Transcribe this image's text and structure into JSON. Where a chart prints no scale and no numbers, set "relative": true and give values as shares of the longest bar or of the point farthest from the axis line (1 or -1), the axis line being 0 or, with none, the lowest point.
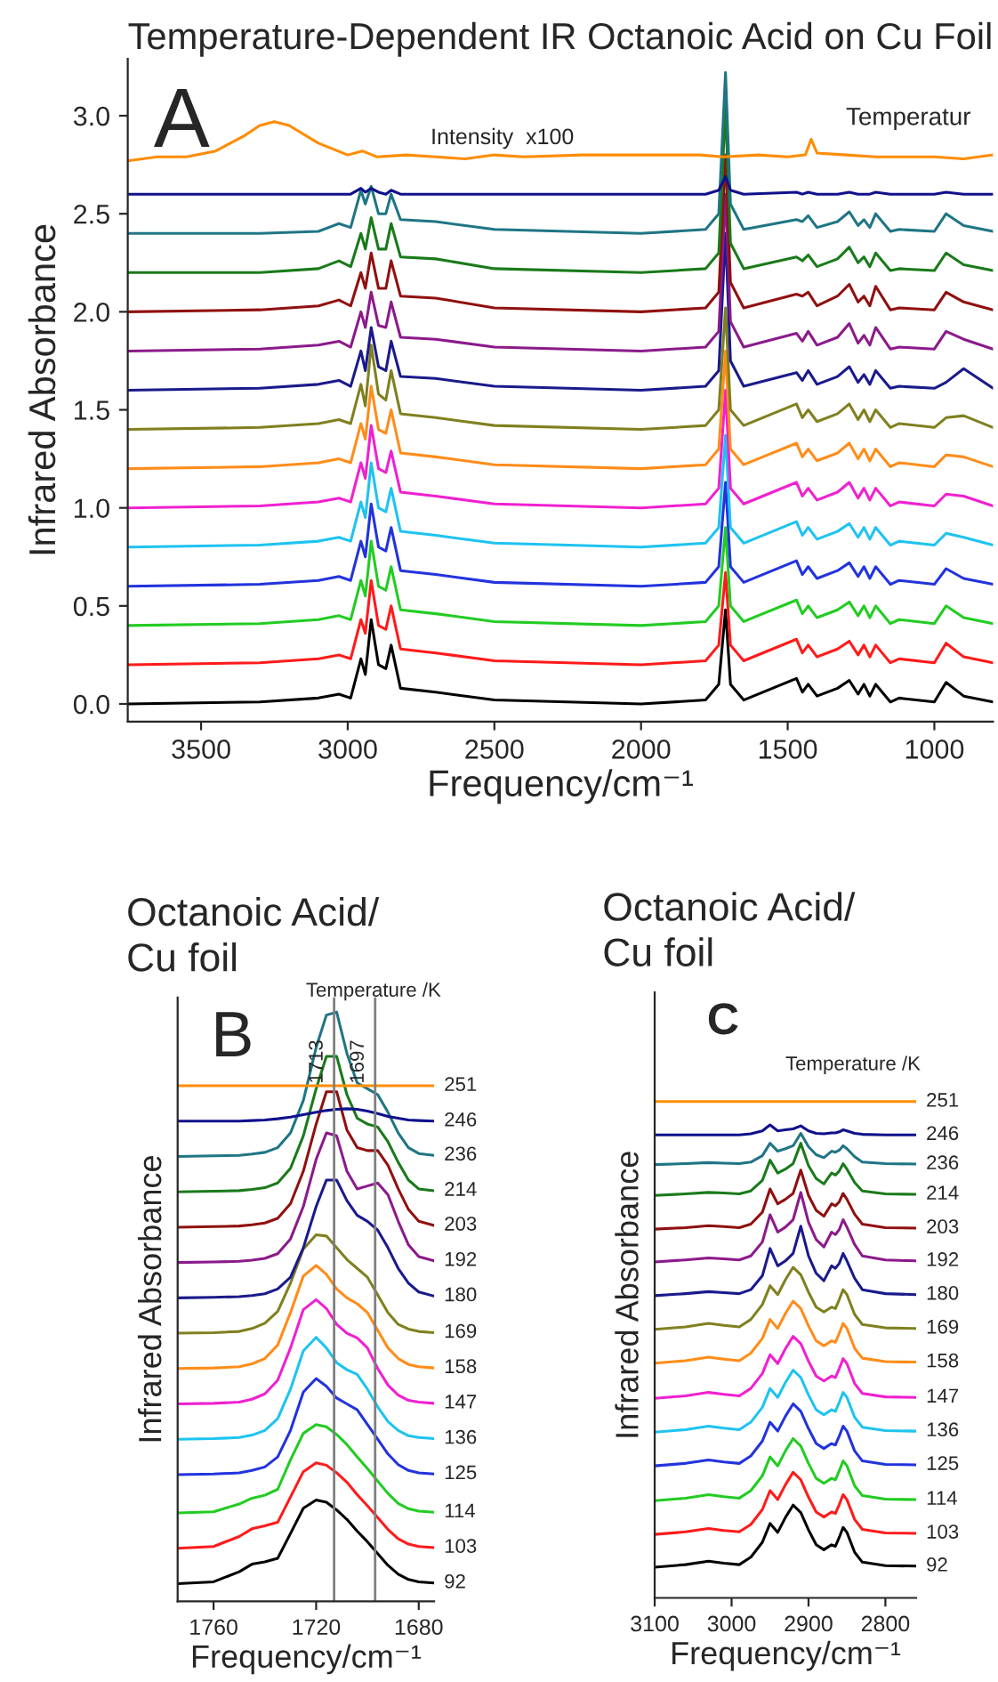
{
  "chart_data": [
    {
      "type": "line",
      "title": "Temperature-Dependent IR Octanoic Acid on Cu Foil",
      "xlabel": "Frequency/cm⁻¹",
      "ylabel": "Infrared Absorbance",
      "xlim": [
        3750,
        800
      ],
      "xticks": [
        3500,
        3000,
        2500,
        2000,
        1500,
        1000
      ],
      "ylim": [
        -0.09,
        3.29
      ],
      "yticks": [
        {
          "value": 0,
          "label": "0.0"
        },
        0.5,
        {
          "value": 1,
          "label": "1.0"
        },
        1.5,
        {
          "value": 2,
          "label": "2.0"
        },
        2.5,
        {
          "value": 3,
          "label": "3.0"
        }
      ],
      "annotations": [
        "A",
        "Temperatur",
        "Intensity  x100"
      ],
      "x": [
        3750,
        3300,
        3100,
        3030,
        2990,
        2955,
        2940,
        2920,
        2895,
        2870,
        2852,
        2820,
        2700,
        2500,
        2000,
        1780,
        1735,
        1712,
        1695,
        1650,
        1470,
        1450,
        1430,
        1400,
        1330,
        1290,
        1260,
        1240,
        1220,
        1200,
        1150,
        1120,
        1000,
        960,
        900,
        800
      ],
      "series": [
        {
          "color": "#000000",
          "values": [
            0,
            0.01,
            0.03,
            0.05,
            0.03,
            0.23,
            0.15,
            0.43,
            0.2,
            0.18,
            0.3,
            0.08,
            0.06,
            0.02,
            0,
            0.02,
            0.1,
            0.48,
            0.1,
            0.02,
            0.13,
            0.06,
            0.1,
            0.04,
            0.08,
            0.12,
            0.05,
            0.1,
            0.04,
            0.1,
            0.01,
            0.03,
            0.01,
            0.11,
            0.04,
            0.01
          ]
        },
        {
          "color": "#ff1a1a",
          "values": [
            0.2,
            0.21,
            0.23,
            0.25,
            0.23,
            0.43,
            0.36,
            0.63,
            0.4,
            0.38,
            0.5,
            0.28,
            0.26,
            0.22,
            0.2,
            0.22,
            0.3,
            0.67,
            0.3,
            0.22,
            0.33,
            0.26,
            0.3,
            0.24,
            0.28,
            0.32,
            0.25,
            0.3,
            0.24,
            0.3,
            0.21,
            0.23,
            0.21,
            0.31,
            0.24,
            0.21
          ]
        },
        {
          "color": "#22cc22",
          "values": [
            0.4,
            0.41,
            0.43,
            0.45,
            0.43,
            0.63,
            0.55,
            0.83,
            0.6,
            0.58,
            0.7,
            0.48,
            0.46,
            0.42,
            0.4,
            0.42,
            0.5,
            0.9,
            0.5,
            0.42,
            0.53,
            0.46,
            0.5,
            0.44,
            0.48,
            0.52,
            0.45,
            0.5,
            0.44,
            0.5,
            0.41,
            0.43,
            0.41,
            0.5,
            0.44,
            0.41
          ]
        },
        {
          "color": "#2233dd",
          "values": [
            0.6,
            0.61,
            0.63,
            0.65,
            0.63,
            0.83,
            0.75,
            1.02,
            0.8,
            0.78,
            0.9,
            0.68,
            0.66,
            0.62,
            0.6,
            0.62,
            0.7,
            1.13,
            0.7,
            0.62,
            0.73,
            0.66,
            0.7,
            0.64,
            0.68,
            0.72,
            0.65,
            0.7,
            0.64,
            0.7,
            0.61,
            0.63,
            0.61,
            0.69,
            0.64,
            0.61
          ]
        },
        {
          "color": "#1ec3f0",
          "values": [
            0.8,
            0.81,
            0.83,
            0.85,
            0.83,
            1.03,
            0.95,
            1.23,
            1.0,
            0.98,
            1.1,
            0.88,
            0.86,
            0.82,
            0.8,
            0.82,
            0.9,
            1.37,
            0.9,
            0.82,
            0.93,
            0.86,
            0.9,
            0.84,
            0.88,
            0.92,
            0.85,
            0.9,
            0.84,
            0.9,
            0.81,
            0.83,
            0.81,
            0.87,
            0.85,
            0.81
          ]
        },
        {
          "color": "#f020d0",
          "values": [
            1.0,
            1.01,
            1.03,
            1.05,
            1.03,
            1.23,
            1.15,
            1.42,
            1.2,
            1.18,
            1.29,
            1.08,
            1.06,
            1.02,
            1.0,
            1.02,
            1.1,
            1.6,
            1.1,
            1.02,
            1.13,
            1.06,
            1.1,
            1.04,
            1.08,
            1.13,
            1.05,
            1.1,
            1.04,
            1.1,
            1.01,
            1.03,
            1.01,
            1.07,
            1.06,
            1.01
          ]
        },
        {
          "color": "#ff8c1a",
          "values": [
            1.2,
            1.21,
            1.23,
            1.25,
            1.23,
            1.43,
            1.35,
            1.62,
            1.4,
            1.38,
            1.5,
            1.28,
            1.26,
            1.22,
            1.2,
            1.22,
            1.3,
            1.8,
            1.3,
            1.22,
            1.33,
            1.26,
            1.3,
            1.24,
            1.28,
            1.33,
            1.25,
            1.3,
            1.24,
            1.3,
            1.21,
            1.23,
            1.21,
            1.27,
            1.26,
            1.21
          ]
        },
        {
          "color": "#808020",
          "values": [
            1.4,
            1.41,
            1.43,
            1.45,
            1.43,
            1.63,
            1.52,
            1.83,
            1.58,
            1.55,
            1.7,
            1.48,
            1.46,
            1.42,
            1.4,
            1.42,
            1.5,
            2.02,
            1.5,
            1.42,
            1.53,
            1.46,
            1.5,
            1.44,
            1.48,
            1.53,
            1.45,
            1.5,
            1.44,
            1.5,
            1.41,
            1.43,
            1.41,
            1.46,
            1.47,
            1.41
          ]
        },
        {
          "color": "#1a1a8c",
          "values": [
            1.6,
            1.61,
            1.63,
            1.65,
            1.62,
            1.8,
            1.7,
            1.92,
            1.72,
            1.7,
            1.85,
            1.67,
            1.66,
            1.62,
            1.6,
            1.62,
            1.7,
            2.4,
            1.75,
            1.62,
            1.69,
            1.65,
            1.7,
            1.63,
            1.67,
            1.72,
            1.64,
            1.68,
            1.63,
            1.7,
            1.61,
            1.62,
            1.61,
            1.64,
            1.71,
            1.61
          ]
        },
        {
          "color": "#8b1a8b",
          "values": [
            1.8,
            1.81,
            1.83,
            1.85,
            1.82,
            2.0,
            1.92,
            2.1,
            1.93,
            1.92,
            2.05,
            1.87,
            1.86,
            1.82,
            1.8,
            1.82,
            1.9,
            2.6,
            1.95,
            1.82,
            1.89,
            1.85,
            1.9,
            1.83,
            1.87,
            1.94,
            1.84,
            1.88,
            1.83,
            1.92,
            1.81,
            1.82,
            1.81,
            1.9,
            1.86,
            1.81
          ]
        },
        {
          "color": "#901010",
          "values": [
            2.0,
            2.01,
            2.03,
            2.06,
            2.03,
            2.2,
            2.12,
            2.3,
            2.12,
            2.12,
            2.26,
            2.08,
            2.07,
            2.02,
            2.0,
            2.02,
            2.1,
            2.8,
            2.15,
            2.02,
            2.09,
            2.08,
            2.1,
            2.03,
            2.08,
            2.14,
            2.05,
            2.08,
            2.03,
            2.13,
            2.01,
            2.02,
            2.01,
            2.1,
            2.05,
            2.01
          ]
        },
        {
          "color": "#1a7a1a",
          "values": [
            2.2,
            2.2,
            2.22,
            2.26,
            2.23,
            2.4,
            2.32,
            2.48,
            2.32,
            2.32,
            2.45,
            2.28,
            2.27,
            2.22,
            2.2,
            2.22,
            2.3,
            3.05,
            2.35,
            2.22,
            2.28,
            2.26,
            2.29,
            2.23,
            2.27,
            2.33,
            2.25,
            2.28,
            2.23,
            2.3,
            2.21,
            2.22,
            2.21,
            2.3,
            2.24,
            2.21
          ]
        },
        {
          "color": "#1f7585",
          "values": [
            2.4,
            2.4,
            2.41,
            2.45,
            2.43,
            2.62,
            2.55,
            2.64,
            2.5,
            2.5,
            2.6,
            2.47,
            2.46,
            2.42,
            2.4,
            2.42,
            2.5,
            3.22,
            2.55,
            2.42,
            2.47,
            2.46,
            2.49,
            2.43,
            2.46,
            2.51,
            2.44,
            2.47,
            2.43,
            2.5,
            2.41,
            2.42,
            2.41,
            2.5,
            2.44,
            2.41
          ]
        },
        {
          "color": "#10108c",
          "values": [
            2.6,
            2.6,
            2.6,
            2.6,
            2.6,
            2.63,
            2.61,
            2.63,
            2.61,
            2.6,
            2.62,
            2.6,
            2.6,
            2.6,
            2.6,
            2.6,
            2.62,
            2.69,
            2.62,
            2.6,
            2.61,
            2.6,
            2.61,
            2.6,
            2.6,
            2.61,
            2.6,
            2.6,
            2.6,
            2.61,
            2.6,
            2.6,
            2.6,
            2.61,
            2.6,
            2.6
          ]
        },
        {
          "color": "#ff8c00",
          "x": [
            3750,
            3650,
            3550,
            3450,
            3350,
            3300,
            3250,
            3200,
            3100,
            3000,
            2950,
            2900,
            2800,
            2700,
            2600,
            2500,
            2400,
            2200,
            2000,
            1800,
            1720,
            1600,
            1500,
            1440,
            1420,
            1400,
            1300,
            1200,
            1100,
            1000,
            900,
            800
          ],
          "values": [
            2.77,
            2.79,
            2.79,
            2.82,
            2.9,
            2.95,
            2.97,
            2.95,
            2.86,
            2.8,
            2.82,
            2.79,
            2.8,
            2.79,
            2.78,
            2.8,
            2.79,
            2.8,
            2.8,
            2.8,
            2.79,
            2.8,
            2.79,
            2.8,
            2.88,
            2.81,
            2.8,
            2.79,
            2.79,
            2.79,
            2.78,
            2.8
          ]
        }
      ]
    },
    {
      "type": "line",
      "relative": true,
      "title": "Octanoic Acid/\nCu foil",
      "xlabel": "Frequency/cm⁻¹",
      "ylabel": "Infrared Absorbance",
      "tick_labels": "x",
      "xlim": [
        1774,
        1674
      ],
      "xticks": [
        1760,
        1720,
        1680
      ],
      "annotations": [
        "B",
        "Temperature /K"
      ],
      "ref_lines": [
        {
          "axis": "x",
          "value": 1713,
          "label": "1713",
          "color": "#808080"
        },
        {
          "axis": "x",
          "value": 1697,
          "label": "1697",
          "color": "#808080"
        }
      ],
      "x": [
        1774,
        1760,
        1750,
        1745,
        1740,
        1735,
        1730,
        1725,
        1720,
        1716,
        1712,
        1708,
        1704,
        1700,
        1696,
        1692,
        1688,
        1684,
        1680,
        1674
      ],
      "series": [
        {
          "name": "92",
          "color": "#000000",
          "values": [
            0.03,
            0.033,
            0.05,
            0.063,
            0.067,
            0.073,
            0.115,
            0.158,
            0.172,
            0.168,
            0.155,
            0.139,
            0.119,
            0.101,
            0.081,
            0.061,
            0.046,
            0.037,
            0.033,
            0.031
          ]
        },
        {
          "name": "103",
          "color": "#ff1a1a",
          "values": [
            0.09,
            0.093,
            0.11,
            0.123,
            0.128,
            0.134,
            0.177,
            0.22,
            0.235,
            0.231,
            0.218,
            0.202,
            0.181,
            0.162,
            0.142,
            0.122,
            0.106,
            0.097,
            0.093,
            0.091
          ]
        },
        {
          "name": "114",
          "color": "#22cc22",
          "values": [
            0.15,
            0.152,
            0.165,
            0.175,
            0.18,
            0.19,
            0.24,
            0.285,
            0.3,
            0.296,
            0.283,
            0.266,
            0.245,
            0.225,
            0.204,
            0.183,
            0.166,
            0.157,
            0.153,
            0.151
          ]
        },
        {
          "name": "125",
          "color": "#2233dd",
          "values": [
            0.215,
            0.216,
            0.218,
            0.222,
            0.228,
            0.245,
            0.29,
            0.355,
            0.378,
            0.365,
            0.345,
            0.335,
            0.325,
            0.3,
            0.275,
            0.25,
            0.232,
            0.222,
            0.218,
            0.216
          ]
        },
        {
          "name": "136",
          "color": "#1ec3f0",
          "values": [
            0.275,
            0.276,
            0.278,
            0.282,
            0.29,
            0.31,
            0.36,
            0.425,
            0.448,
            0.43,
            0.405,
            0.393,
            0.385,
            0.36,
            0.33,
            0.305,
            0.29,
            0.281,
            0.278,
            0.276
          ]
        },
        {
          "name": "147",
          "color": "#f020d0",
          "values": [
            0.335,
            0.336,
            0.338,
            0.343,
            0.352,
            0.375,
            0.43,
            0.495,
            0.512,
            0.497,
            0.47,
            0.455,
            0.447,
            0.43,
            0.395,
            0.367,
            0.35,
            0.341,
            0.338,
            0.336
          ]
        },
        {
          "name": "158",
          "color": "#ff8c1a",
          "values": [
            0.395,
            0.396,
            0.398,
            0.403,
            0.412,
            0.435,
            0.49,
            0.552,
            0.57,
            0.555,
            0.53,
            0.515,
            0.505,
            0.49,
            0.46,
            0.43,
            0.412,
            0.402,
            0.398,
            0.396
          ]
        },
        {
          "name": "169",
          "color": "#808020",
          "values": [
            0.455,
            0.456,
            0.458,
            0.463,
            0.472,
            0.492,
            0.54,
            0.598,
            0.622,
            0.62,
            0.6,
            0.58,
            0.565,
            0.55,
            0.52,
            0.49,
            0.47,
            0.462,
            0.458,
            0.456
          ]
        },
        {
          "name": "180",
          "color": "#1a1a8c",
          "values": [
            0.515,
            0.516,
            0.517,
            0.519,
            0.522,
            0.53,
            0.55,
            0.6,
            0.67,
            0.715,
            0.715,
            0.68,
            0.655,
            0.645,
            0.63,
            0.6,
            0.565,
            0.54,
            0.525,
            0.518
          ]
        },
        {
          "name": "192",
          "color": "#8b1a8b",
          "values": [
            0.575,
            0.576,
            0.577,
            0.579,
            0.582,
            0.59,
            0.615,
            0.67,
            0.75,
            0.795,
            0.79,
            0.73,
            0.7,
            0.705,
            0.71,
            0.69,
            0.645,
            0.605,
            0.585,
            0.578
          ]
        },
        {
          "name": "203",
          "color": "#901010",
          "values": [
            0.635,
            0.636,
            0.637,
            0.639,
            0.642,
            0.65,
            0.675,
            0.73,
            0.81,
            0.865,
            0.865,
            0.8,
            0.77,
            0.765,
            0.765,
            0.74,
            0.7,
            0.665,
            0.645,
            0.638
          ]
        },
        {
          "name": "214",
          "color": "#1a7a1a",
          "values": [
            0.695,
            0.696,
            0.697,
            0.699,
            0.702,
            0.71,
            0.735,
            0.79,
            0.87,
            0.925,
            0.925,
            0.86,
            0.82,
            0.81,
            0.805,
            0.78,
            0.745,
            0.715,
            0.7,
            0.697
          ]
        },
        {
          "name": "236",
          "color": "#1f7585",
          "values": [
            0.755,
            0.756,
            0.757,
            0.759,
            0.762,
            0.77,
            0.795,
            0.85,
            0.94,
            0.995,
            1.0,
            0.93,
            0.88,
            0.87,
            0.86,
            0.83,
            0.795,
            0.77,
            0.76,
            0.757
          ]
        },
        {
          "name": "246",
          "color": "#10108c",
          "values": [
            0.815,
            0.815,
            0.815,
            0.816,
            0.817,
            0.819,
            0.822,
            0.826,
            0.83,
            0.833,
            0.835,
            0.836,
            0.835,
            0.832,
            0.828,
            0.823,
            0.82,
            0.817,
            0.816,
            0.815
          ]
        },
        {
          "name": "251",
          "color": "#ff8c00",
          "values": [
            0.875,
            0.875,
            0.875,
            0.875,
            0.875,
            0.875,
            0.875,
            0.875,
            0.875,
            0.875,
            0.875,
            0.875,
            0.875,
            0.875,
            0.875,
            0.875,
            0.875,
            0.875,
            0.875,
            0.875
          ]
        }
      ]
    },
    {
      "type": "line",
      "relative": true,
      "title": "Octanoic Acid/\nCu foil",
      "xlabel": "Frequency/cm⁻¹",
      "ylabel": "Infrared Absorbance",
      "tick_labels": "x",
      "xlim": [
        3100,
        2760
      ],
      "xticks": [
        3100,
        3000,
        2900,
        2800
      ],
      "annotations": [
        "C",
        "Temperature /K"
      ],
      "x": [
        3100,
        3060,
        3030,
        3010,
        2990,
        2975,
        2960,
        2950,
        2940,
        2930,
        2920,
        2910,
        2900,
        2890,
        2880,
        2870,
        2865,
        2860,
        2855,
        2850,
        2840,
        2830,
        2800,
        2760
      ],
      "series": [
        {
          "name": "92",
          "color": "#000000",
          "values": [
            0.062,
            0.067,
            0.074,
            0.07,
            0.067,
            0.082,
            0.112,
            0.15,
            0.132,
            0.162,
            0.187,
            0.172,
            0.137,
            0.107,
            0.097,
            0.107,
            0.104,
            0.122,
            0.142,
            0.132,
            0.092,
            0.072,
            0.065,
            0.064
          ]
        },
        {
          "name": "103",
          "color": "#ff1a1a",
          "values": [
            0.128,
            0.133,
            0.14,
            0.136,
            0.133,
            0.148,
            0.178,
            0.216,
            0.198,
            0.228,
            0.253,
            0.238,
            0.203,
            0.173,
            0.163,
            0.173,
            0.17,
            0.188,
            0.208,
            0.198,
            0.158,
            0.138,
            0.131,
            0.13
          ]
        },
        {
          "name": "114",
          "color": "#22cc22",
          "values": [
            0.196,
            0.201,
            0.208,
            0.204,
            0.201,
            0.216,
            0.246,
            0.284,
            0.266,
            0.296,
            0.321,
            0.306,
            0.271,
            0.241,
            0.231,
            0.241,
            0.238,
            0.256,
            0.276,
            0.266,
            0.226,
            0.206,
            0.199,
            0.198
          ]
        },
        {
          "name": "125",
          "color": "#2233dd",
          "values": [
            0.266,
            0.271,
            0.278,
            0.274,
            0.271,
            0.286,
            0.316,
            0.354,
            0.336,
            0.366,
            0.391,
            0.376,
            0.341,
            0.311,
            0.301,
            0.311,
            0.308,
            0.326,
            0.346,
            0.336,
            0.296,
            0.276,
            0.269,
            0.268
          ]
        },
        {
          "name": "136",
          "color": "#1ec3f0",
          "values": [
            0.334,
            0.339,
            0.346,
            0.342,
            0.339,
            0.354,
            0.384,
            0.422,
            0.404,
            0.434,
            0.459,
            0.444,
            0.409,
            0.379,
            0.369,
            0.379,
            0.376,
            0.394,
            0.414,
            0.404,
            0.364,
            0.344,
            0.337,
            0.336
          ]
        },
        {
          "name": "147",
          "color": "#f020d0",
          "values": [
            0.402,
            0.407,
            0.414,
            0.41,
            0.407,
            0.422,
            0.452,
            0.49,
            0.472,
            0.502,
            0.527,
            0.512,
            0.477,
            0.447,
            0.437,
            0.447,
            0.444,
            0.462,
            0.482,
            0.472,
            0.432,
            0.412,
            0.405,
            0.404
          ]
        },
        {
          "name": "158",
          "color": "#ff8c1a",
          "values": [
            0.473,
            0.478,
            0.485,
            0.481,
            0.478,
            0.493,
            0.523,
            0.561,
            0.543,
            0.573,
            0.598,
            0.583,
            0.548,
            0.518,
            0.508,
            0.518,
            0.515,
            0.533,
            0.553,
            0.543,
            0.503,
            0.483,
            0.476,
            0.475
          ]
        },
        {
          "name": "169",
          "color": "#808020",
          "values": [
            0.541,
            0.546,
            0.553,
            0.549,
            0.546,
            0.561,
            0.591,
            0.629,
            0.611,
            0.641,
            0.666,
            0.651,
            0.616,
            0.586,
            0.576,
            0.586,
            0.583,
            0.601,
            0.621,
            0.611,
            0.571,
            0.551,
            0.544,
            0.543
          ]
        },
        {
          "name": "180",
          "color": "#1a1a8c",
          "values": [
            0.609,
            0.613,
            0.617,
            0.615,
            0.613,
            0.621,
            0.649,
            0.704,
            0.669,
            0.679,
            0.694,
            0.749,
            0.689,
            0.654,
            0.639,
            0.669,
            0.664,
            0.674,
            0.694,
            0.679,
            0.644,
            0.621,
            0.613,
            0.611
          ]
        },
        {
          "name": "192",
          "color": "#8b1a8b",
          "values": [
            0.677,
            0.681,
            0.685,
            0.683,
            0.681,
            0.689,
            0.717,
            0.772,
            0.737,
            0.747,
            0.762,
            0.817,
            0.757,
            0.722,
            0.707,
            0.737,
            0.732,
            0.742,
            0.762,
            0.747,
            0.712,
            0.689,
            0.681,
            0.679
          ]
        },
        {
          "name": "203",
          "color": "#901010",
          "values": [
            0.743,
            0.746,
            0.75,
            0.748,
            0.746,
            0.753,
            0.777,
            0.824,
            0.794,
            0.803,
            0.815,
            0.862,
            0.811,
            0.781,
            0.769,
            0.794,
            0.79,
            0.798,
            0.815,
            0.803,
            0.773,
            0.753,
            0.746,
            0.745
          ]
        },
        {
          "name": "214",
          "color": "#1a7a1a",
          "values": [
            0.811,
            0.814,
            0.817,
            0.816,
            0.814,
            0.82,
            0.841,
            0.882,
            0.856,
            0.864,
            0.875,
            0.916,
            0.871,
            0.845,
            0.834,
            0.856,
            0.852,
            0.86,
            0.875,
            0.864,
            0.837,
            0.82,
            0.814,
            0.813
          ]
        },
        {
          "name": "236",
          "color": "#1f7585",
          "values": [
            0.873,
            0.875,
            0.877,
            0.876,
            0.875,
            0.878,
            0.891,
            0.916,
            0.9,
            0.905,
            0.911,
            0.936,
            0.909,
            0.893,
            0.887,
            0.9,
            0.898,
            0.902,
            0.911,
            0.905,
            0.889,
            0.878,
            0.875,
            0.874
          ]
        },
        {
          "name": "246",
          "color": "#10108c",
          "values": [
            0.933,
            0.933,
            0.933,
            0.933,
            0.933,
            0.935,
            0.941,
            0.953,
            0.941,
            0.943,
            0.945,
            0.951,
            0.941,
            0.936,
            0.935,
            0.937,
            0.937,
            0.939,
            0.943,
            0.941,
            0.936,
            0.934,
            0.933,
            0.933
          ]
        },
        {
          "name": "251",
          "color": "#ff8c00",
          "values": [
            1,
            1,
            1,
            1,
            1,
            1,
            1,
            1,
            1,
            1,
            1,
            1,
            1,
            1,
            1,
            1,
            1,
            1,
            1,
            1,
            1,
            1,
            1,
            1
          ]
        }
      ]
    }
  ]
}
